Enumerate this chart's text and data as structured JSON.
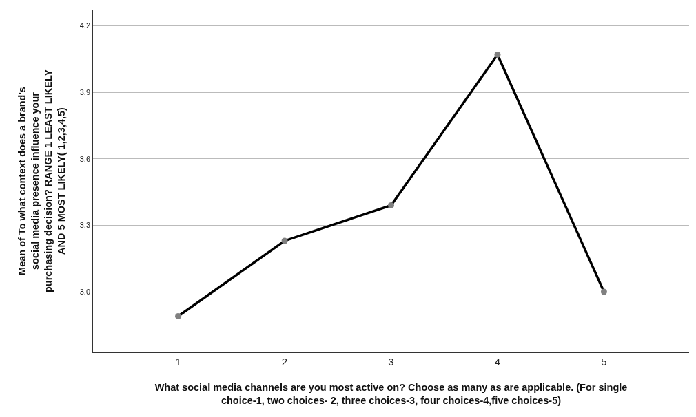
{
  "chart_data": {
    "type": "line",
    "xlabel": "What social media channels are you most active on? Choose as many as are applicable. (For single choice-1, two choices- 2, three choices-3, four choices-4,five choices-5)",
    "ylabel": "Mean of To what context does a brand's social media presence influence your purchasing decision? RANGE 1 LEAST LIKELY AND 5 MOST LIKELY( 1,2,3,4,5)",
    "categories": [
      "1",
      "2",
      "3",
      "4",
      "5"
    ],
    "series": [
      {
        "color": "#000000",
        "values": [
          2.89,
          3.23,
          3.39,
          4.07,
          3.0
        ]
      }
    ],
    "ylim": [
      2.73,
      4.27
    ],
    "yticks": [
      {
        "value": 3.0,
        "label": "3.0"
      },
      {
        "value": 3.3,
        "label": "3.3"
      },
      {
        "value": 3.6,
        "label": "3.6"
      },
      {
        "value": 3.9,
        "label": "3.9"
      },
      {
        "value": 4.2,
        "label": "4.2"
      }
    ],
    "grid": "y",
    "marker": "circle",
    "line_style": "solid",
    "legend": false
  }
}
